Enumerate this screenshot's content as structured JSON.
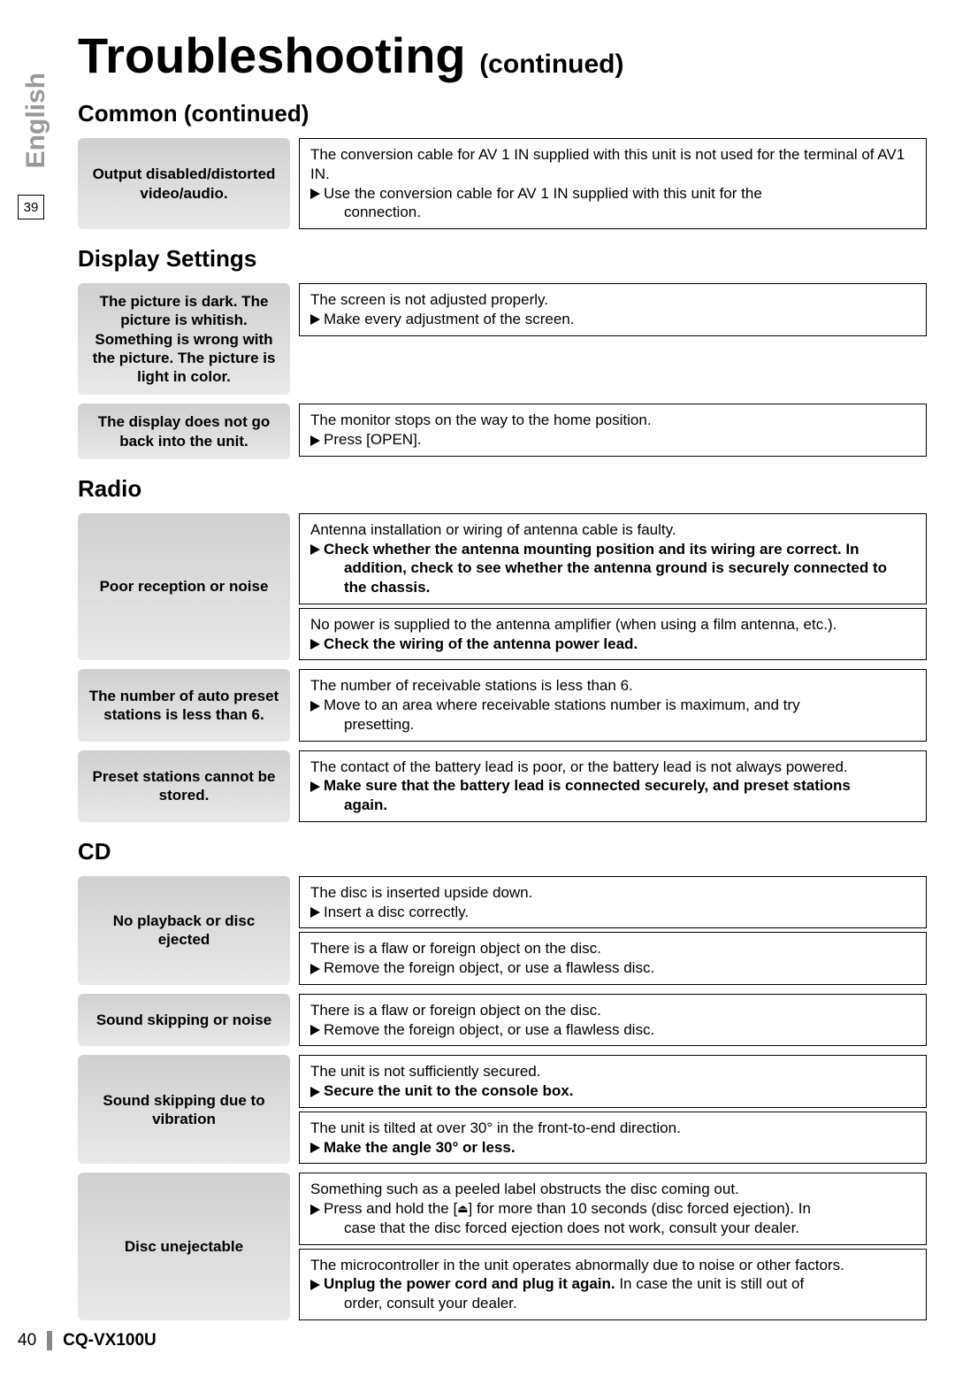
{
  "page": {
    "title": "Troubleshooting",
    "continued": "(continued)",
    "sideTab": "English",
    "sidePage": "39",
    "footerPage": "40",
    "footerModel": "CQ-VX100U"
  },
  "sections": [
    {
      "heading": "Common (continued)",
      "rows": [
        {
          "label": "Output disabled/distorted video/audio.",
          "boxes": [
            {
              "lines": [
                {
                  "text": "The conversion cable for AV 1 IN supplied with this unit is not used for the terminal of AV1 IN."
                },
                {
                  "arrow": true,
                  "text": "Use the conversion cable for AV 1 IN supplied with this unit for the",
                  "cont": "connection."
                }
              ]
            }
          ]
        }
      ]
    },
    {
      "heading": "Display Settings",
      "rows": [
        {
          "label": "The picture is dark. The picture is whitish. Something is wrong with the picture. The picture is light in color.",
          "boxes": [
            {
              "lines": [
                {
                  "text": "The screen is not adjusted properly."
                },
                {
                  "arrow": true,
                  "text": "Make every adjustment of the screen."
                }
              ]
            }
          ]
        },
        {
          "label": "The display does not go back into the unit.",
          "boxes": [
            {
              "lines": [
                {
                  "text": "The monitor stops on the way to the home position."
                },
                {
                  "arrow": true,
                  "text": "Press [OPEN]."
                }
              ]
            }
          ]
        }
      ]
    },
    {
      "heading": "Radio",
      "rows": [
        {
          "label": "Poor reception or noise",
          "boxes": [
            {
              "lines": [
                {
                  "text": "Antenna installation or wiring of antenna cable is faulty."
                },
                {
                  "arrow": true,
                  "bold": true,
                  "text": "Check whether the antenna mounting position and its wiring are correct. In",
                  "cont": "addition, check to see whether the antenna ground is securely connected to",
                  "cont2": "the chassis."
                }
              ]
            },
            {
              "lines": [
                {
                  "text": "No power is supplied to the antenna amplifier (when using a film antenna, etc.)."
                },
                {
                  "arrow": true,
                  "bold": true,
                  "text": "Check the wiring of the antenna power lead."
                }
              ]
            }
          ]
        },
        {
          "label": "The number of auto preset stations is less than 6.",
          "boxes": [
            {
              "lines": [
                {
                  "text": "The number of receivable stations is less than 6."
                },
                {
                  "arrow": true,
                  "text": "Move to an area where receivable stations number is maximum, and try",
                  "cont": "presetting."
                }
              ]
            }
          ]
        },
        {
          "label": "Preset stations cannot be stored.",
          "boxes": [
            {
              "lines": [
                {
                  "text": "The contact of the battery lead is poor, or the battery lead is not always powered."
                },
                {
                  "arrow": true,
                  "bold": true,
                  "text": "Make sure that the battery lead is connected securely, and preset stations",
                  "cont": "again."
                }
              ]
            }
          ]
        }
      ]
    },
    {
      "heading": "CD",
      "rows": [
        {
          "label": "No playback or disc ejected",
          "boxes": [
            {
              "lines": [
                {
                  "text": "The disc is inserted upside down."
                },
                {
                  "arrow": true,
                  "text": "Insert a disc correctly."
                }
              ]
            },
            {
              "lines": [
                {
                  "text": "There is a flaw or foreign object on the disc."
                },
                {
                  "arrow": true,
                  "text": "Remove the foreign object, or use a flawless disc."
                }
              ]
            }
          ]
        },
        {
          "label": "Sound skipping or noise",
          "boxes": [
            {
              "lines": [
                {
                  "text": "There is a flaw or foreign object on the disc."
                },
                {
                  "arrow": true,
                  "text": "Remove the foreign object, or use a flawless disc."
                }
              ]
            }
          ]
        },
        {
          "label": "Sound skipping due to vibration",
          "boxes": [
            {
              "lines": [
                {
                  "text": "The unit is not sufficiently secured."
                },
                {
                  "arrow": true,
                  "bold": true,
                  "text": "Secure the unit to the console box."
                }
              ]
            },
            {
              "lines": [
                {
                  "text": "The unit is tilted at over 30° in the front-to-end direction."
                },
                {
                  "arrow": true,
                  "bold": true,
                  "text": "Make the angle 30° or less."
                }
              ]
            }
          ]
        },
        {
          "label": "Disc unejectable",
          "boxes": [
            {
              "lines": [
                {
                  "text": "Something such as a peeled label obstructs the disc coming out."
                },
                {
                  "arrow": true,
                  "eject": true,
                  "text": "Press and hold the [",
                  "post": "] for more than 10 seconds (disc forced ejection). In",
                  "cont": "case that the disc forced ejection does not work, consult your dealer."
                }
              ]
            },
            {
              "lines": [
                {
                  "text": "The microcontroller in the unit operates abnormally due to noise or other factors."
                },
                {
                  "arrow": true,
                  "mixedBold": "Unplug the power cord and plug it again.",
                  "mixedRest": " In case the unit is still out of",
                  "cont": "order, consult your dealer."
                }
              ]
            }
          ]
        }
      ]
    }
  ]
}
